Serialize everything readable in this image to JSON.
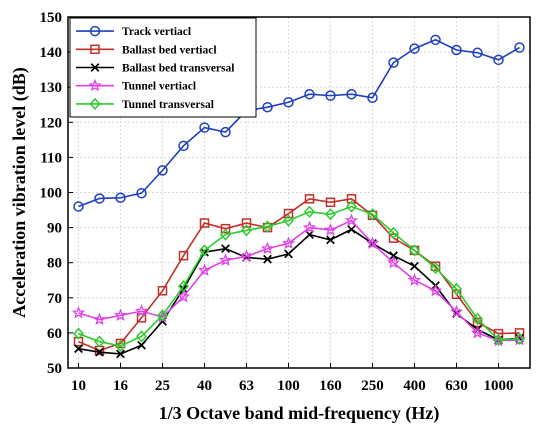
{
  "chart_data": {
    "type": "line",
    "xlabel": "1/3 Octave band mid-frequency (Hz)",
    "ylabel": "Acceleration vibration level (dB)",
    "ylim": [
      50,
      150
    ],
    "yticks": [
      50,
      60,
      70,
      80,
      90,
      100,
      110,
      120,
      130,
      140,
      150
    ],
    "grid": true,
    "legend_position": "top-left",
    "x": [
      10,
      12.5,
      16,
      20,
      25,
      31.5,
      40,
      50,
      63,
      80,
      100,
      125,
      160,
      200,
      250,
      315,
      400,
      500,
      630,
      800,
      1000,
      1250
    ],
    "xticks": [
      {
        "index": 0,
        "label": "10"
      },
      {
        "index": 2,
        "label": "16"
      },
      {
        "index": 4,
        "label": "25"
      },
      {
        "index": 6,
        "label": "40"
      },
      {
        "index": 8,
        "label": "63"
      },
      {
        "index": 10,
        "label": "100"
      },
      {
        "index": 12,
        "label": "160"
      },
      {
        "index": 14,
        "label": "250"
      },
      {
        "index": 16,
        "label": "400"
      },
      {
        "index": 18,
        "label": "630"
      },
      {
        "index": 20,
        "label": "1000"
      }
    ],
    "series": [
      {
        "name": "Track vertiacl",
        "color": "#1f3fbf",
        "marker": "circle",
        "values": [
          96,
          98.3,
          98.5,
          99.8,
          106.3,
          113.3,
          118.5,
          117.2,
          123.3,
          124.3,
          125.7,
          128,
          127.6,
          128,
          127,
          137,
          141,
          143.5,
          140.6,
          139.8,
          137.8,
          141.3
        ]
      },
      {
        "name": "Ballast bed vertiacl",
        "color": "#c0302a",
        "marker": "square",
        "values": [
          57.5,
          55,
          57,
          64.3,
          72,
          82,
          91.3,
          89.7,
          91.3,
          90,
          94,
          98.2,
          97.2,
          98.2,
          93.5,
          87,
          83.5,
          79,
          71,
          63,
          59.8,
          60
        ]
      },
      {
        "name": "Ballast bed transversal",
        "color": "#000000",
        "marker": "x",
        "values": [
          55.5,
          54.5,
          54,
          56.5,
          63.3,
          72.5,
          83,
          84,
          81.5,
          81,
          82.5,
          88,
          86.5,
          89.5,
          85.5,
          82,
          79,
          73.5,
          65.5,
          61,
          58,
          58.5
        ]
      },
      {
        "name": "Tunnel vertiacl",
        "color": "#e040e8",
        "marker": "star",
        "values": [
          65.7,
          63.8,
          65,
          66.2,
          64.5,
          70.3,
          77.8,
          80.7,
          81.8,
          84,
          85.5,
          90,
          89.3,
          92,
          85.5,
          80,
          75,
          72,
          66,
          60,
          57.8,
          58
        ]
      },
      {
        "name": "Tunnel transversal",
        "color": "#2ecc2e",
        "marker": "diamond",
        "values": [
          59.8,
          57.5,
          56.3,
          59,
          65,
          73.3,
          83.5,
          88,
          89.2,
          90.3,
          92,
          94.5,
          93.8,
          96,
          93.8,
          88.5,
          83.5,
          78.5,
          72.5,
          64,
          58,
          58.3
        ]
      }
    ]
  }
}
